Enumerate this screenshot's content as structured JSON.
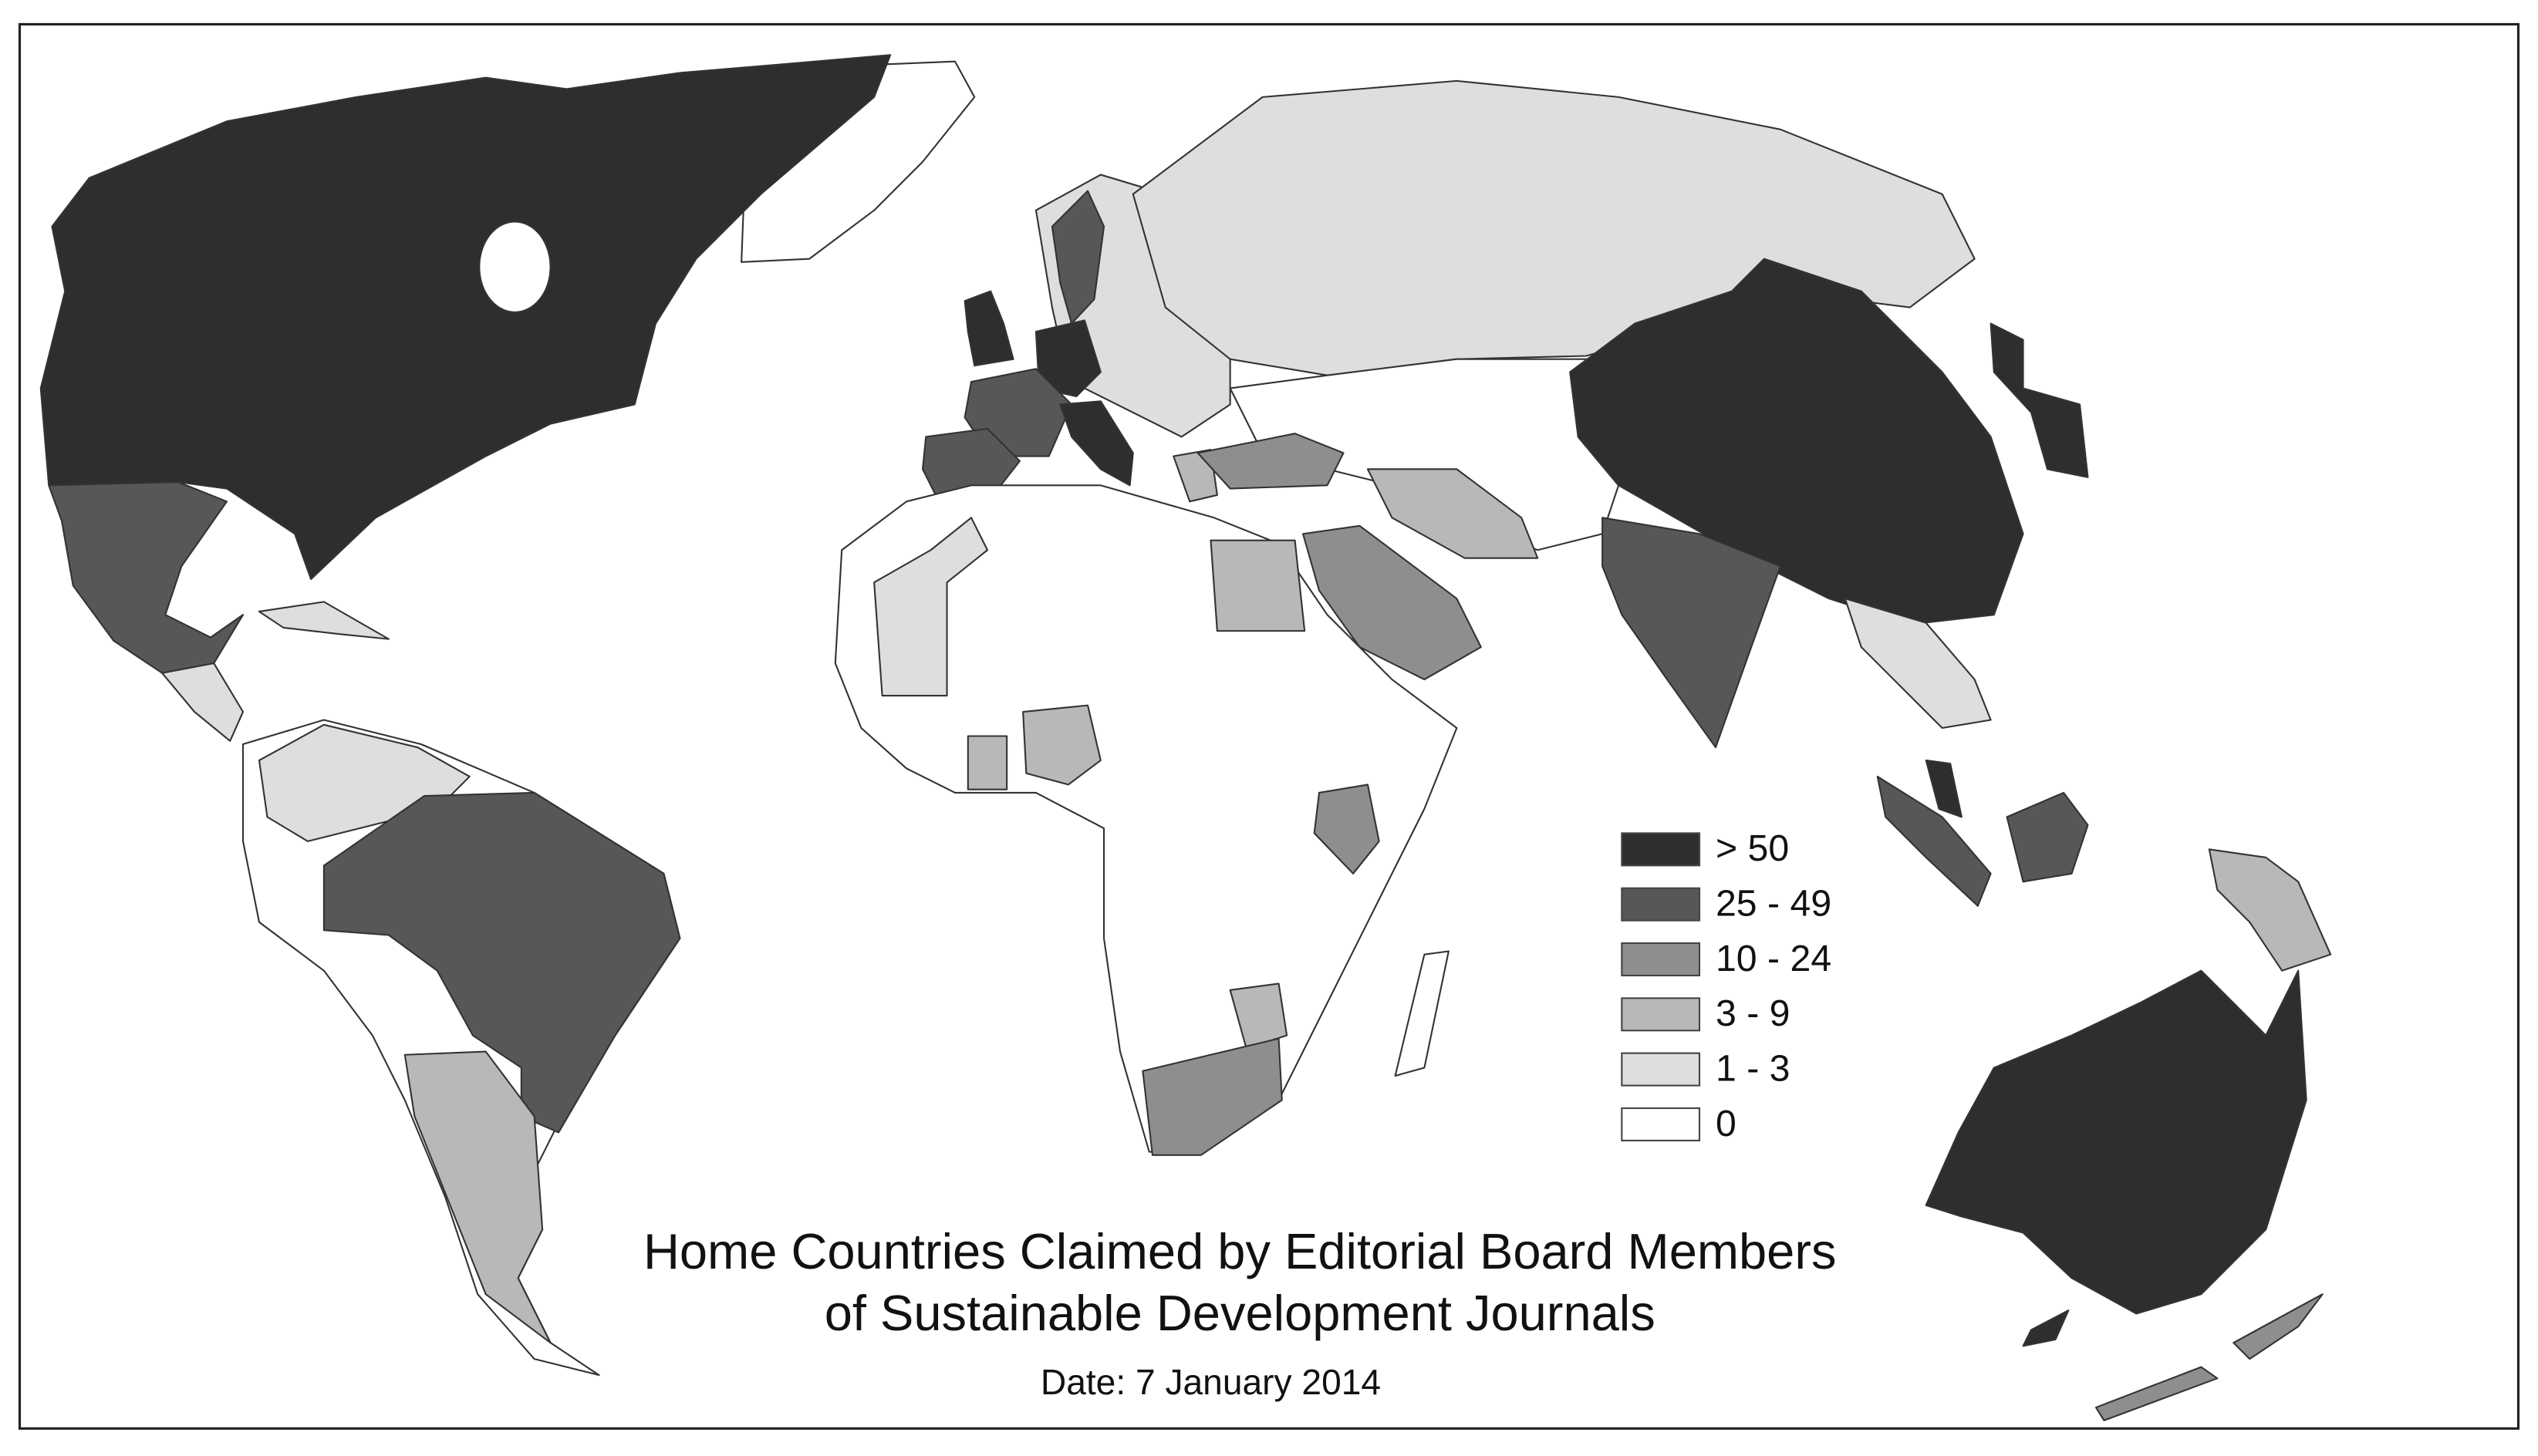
{
  "title": [
    "Home Countries Claimed by Editorial Board Members",
    "of Sustainable Development Journals"
  ],
  "date": "Date: 7 January 2014",
  "legend": [
    {
      "label": "> 50",
      "color": "#2e2e2e"
    },
    {
      "label": "25 - 49",
      "color": "#575757"
    },
    {
      "label": "10 - 24",
      "color": "#8e8e8e"
    },
    {
      "label": "3 - 9",
      "color": "#b8b8b8"
    },
    {
      "label": "1 - 3",
      "color": "#dedede"
    },
    {
      "label": "0",
      "color": "#ffffff"
    }
  ]
}
